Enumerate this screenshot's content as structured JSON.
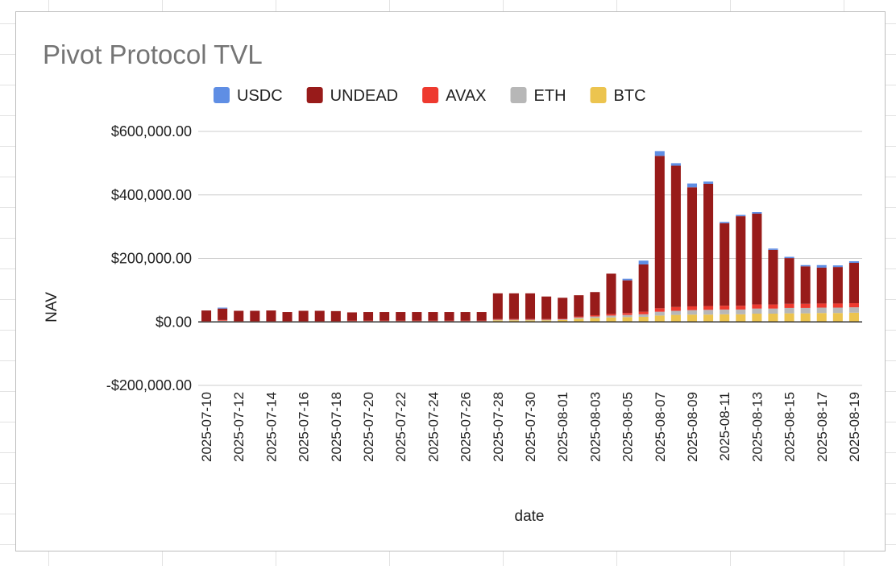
{
  "chart_data": {
    "type": "bar",
    "stacked": true,
    "title": "Pivot Protocol TVL",
    "xlabel": "date",
    "ylabel": "NAV",
    "ylim": [
      -200000,
      600000
    ],
    "yticks": [
      600000,
      400000,
      200000,
      0,
      -200000
    ],
    "ytick_labels": [
      "$600,000.00",
      "$400,000.00",
      "$200,000.00",
      "$0.00",
      "-$200,000.00"
    ],
    "legend_position": "top",
    "grid": true,
    "x_tick_labels": [
      "2025-07-10",
      "2025-07-12",
      "2025-07-14",
      "2025-07-16",
      "2025-07-18",
      "2025-07-20",
      "2025-07-22",
      "2025-07-24",
      "2025-07-26",
      "2025-07-28",
      "2025-07-30",
      "2025-08-01",
      "2025-08-03",
      "2025-08-05",
      "2025-08-07",
      "2025-08-09",
      "2025-08-11",
      "2025-08-13",
      "2025-08-15",
      "2025-08-17",
      "2025-08-19"
    ],
    "categories": [
      "2025-07-10",
      "2025-07-11",
      "2025-07-12",
      "2025-07-13",
      "2025-07-14",
      "2025-07-15",
      "2025-07-16",
      "2025-07-17",
      "2025-07-18",
      "2025-07-19",
      "2025-07-20",
      "2025-07-21",
      "2025-07-22",
      "2025-07-23",
      "2025-07-24",
      "2025-07-25",
      "2025-07-26",
      "2025-07-27",
      "2025-07-28",
      "2025-07-29",
      "2025-07-30",
      "2025-07-31",
      "2025-08-01",
      "2025-08-02",
      "2025-08-03",
      "2025-08-04",
      "2025-08-05",
      "2025-08-06",
      "2025-08-07",
      "2025-08-08",
      "2025-08-09",
      "2025-08-10",
      "2025-08-11",
      "2025-08-12",
      "2025-08-13",
      "2025-08-14",
      "2025-08-15",
      "2025-08-16",
      "2025-08-17",
      "2025-08-18",
      "2025-08-19"
    ],
    "series": [
      {
        "name": "BTC",
        "color": "#ecc44f",
        "values": [
          1000,
          2000,
          1000,
          1000,
          1000,
          1000,
          1000,
          1000,
          1000,
          2000,
          2000,
          2000,
          2000,
          2000,
          2000,
          2000,
          2000,
          2000,
          5000,
          5000,
          5000,
          5000,
          6000,
          10000,
          12000,
          14000,
          15000,
          16000,
          20000,
          22000,
          23000,
          23000,
          24000,
          24000,
          26000,
          26000,
          27000,
          27000,
          28000,
          28000,
          29000
        ]
      },
      {
        "name": "ETH",
        "color": "#b7b7b7",
        "values": [
          1000,
          2000,
          1000,
          1000,
          1000,
          1000,
          1000,
          1000,
          1000,
          1000,
          1000,
          1000,
          1000,
          1000,
          1000,
          1000,
          1000,
          1000,
          2000,
          2000,
          2000,
          2000,
          2000,
          4000,
          5000,
          6000,
          7000,
          8000,
          12000,
          13000,
          14000,
          15000,
          15000,
          15000,
          16000,
          16000,
          17000,
          17000,
          17000,
          17000,
          17000
        ]
      },
      {
        "name": "AVAX",
        "color": "#ee3a2f",
        "values": [
          1000,
          2000,
          1000,
          1000,
          1000,
          1000,
          1000,
          1000,
          1000,
          1000,
          1000,
          1000,
          1000,
          1000,
          1000,
          1000,
          1000,
          1000,
          2000,
          2000,
          2000,
          2000,
          2000,
          3000,
          4000,
          5000,
          6000,
          8000,
          11000,
          12000,
          12000,
          12000,
          12000,
          12000,
          13000,
          13000,
          13000,
          13000,
          13000,
          13000,
          13000
        ]
      },
      {
        "name": "UNDEAD",
        "color": "#981b1a",
        "values": [
          33000,
          36000,
          32000,
          32000,
          33000,
          28000,
          32000,
          32000,
          31000,
          26000,
          27000,
          27000,
          27000,
          27000,
          27000,
          27000,
          27000,
          27000,
          81000,
          81000,
          81000,
          71000,
          66000,
          67000,
          73000,
          127000,
          103000,
          149000,
          480000,
          445000,
          375000,
          385000,
          260000,
          282000,
          286000,
          172000,
          144000,
          118000,
          113000,
          115000,
          127000
        ]
      },
      {
        "name": "USDC",
        "color": "#5f8ee4",
        "values": [
          0,
          3000,
          0,
          0,
          0,
          0,
          0,
          0,
          0,
          0,
          0,
          0,
          0,
          0,
          0,
          0,
          0,
          0,
          0,
          0,
          0,
          0,
          0,
          0,
          0,
          0,
          5000,
          12000,
          15000,
          8000,
          12000,
          7000,
          4000,
          4000,
          5000,
          4000,
          4000,
          4000,
          8000,
          5000,
          5000
        ]
      }
    ]
  }
}
